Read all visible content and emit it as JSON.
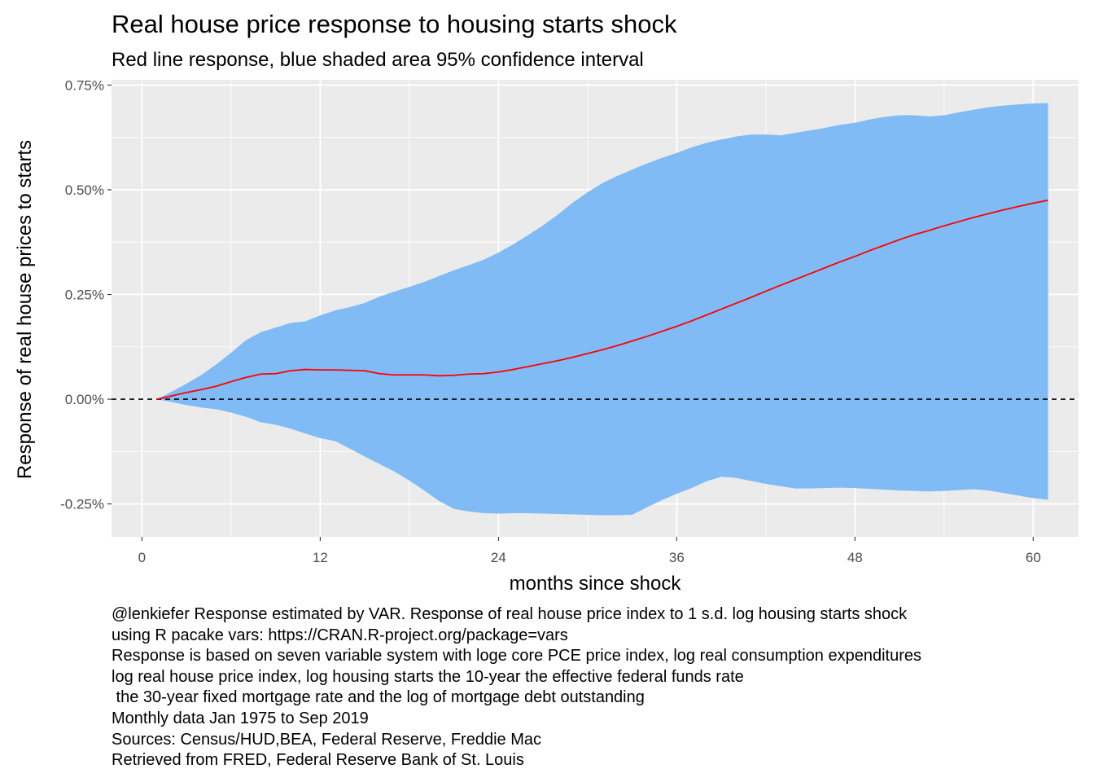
{
  "chart_data": {
    "type": "area",
    "title": "Real house price response to housing starts shock",
    "subtitle": "Red line response, blue shaded area 95% confidence interval",
    "xlabel": "months since shock",
    "ylabel": "Response of real house prices to starts",
    "x_ticks": [
      0,
      12,
      24,
      36,
      48,
      60
    ],
    "x_tick_labels": [
      "0",
      "12",
      "24",
      "36",
      "48",
      "60"
    ],
    "y_ticks": [
      -0.25,
      0,
      0.25,
      0.5,
      0.75
    ],
    "y_tick_labels": [
      "-0.25%",
      "0.00%",
      "0.25%",
      "0.50%",
      "0.75%"
    ],
    "xlim": [
      -2.05,
      63.05
    ],
    "ylim": [
      -0.3285,
      0.7625
    ],
    "grid": true,
    "reference_line": {
      "y": 0,
      "style": "dashed",
      "color": "#000000"
    },
    "x": [
      1,
      2,
      3,
      4,
      5,
      6,
      7,
      8,
      9,
      10,
      11,
      12,
      13,
      14,
      15,
      16,
      17,
      18,
      19,
      20,
      21,
      22,
      23,
      24,
      25,
      26,
      27,
      28,
      29,
      30,
      31,
      32,
      33,
      34,
      35,
      36,
      37,
      38,
      39,
      40,
      41,
      42,
      43,
      44,
      45,
      46,
      47,
      48,
      49,
      50,
      51,
      52,
      53,
      54,
      55,
      56,
      57,
      58,
      59,
      60,
      61
    ],
    "series": [
      {
        "role": "response",
        "color": "#ff0000",
        "values": [
          0,
          0.008,
          0.016,
          0.023,
          0.031,
          0.042,
          0.052,
          0.06,
          0.061,
          0.068,
          0.071,
          0.07,
          0.07,
          0.069,
          0.068,
          0.061,
          0.058,
          0.058,
          0.058,
          0.056,
          0.057,
          0.06,
          0.061,
          0.065,
          0.071,
          0.078,
          0.085,
          0.092,
          0.1,
          0.109,
          0.118,
          0.128,
          0.139,
          0.15,
          0.162,
          0.174,
          0.187,
          0.201,
          0.215,
          0.229,
          0.243,
          0.258,
          0.272,
          0.286,
          0.3,
          0.314,
          0.328,
          0.341,
          0.355,
          0.368,
          0.381,
          0.393,
          0.403,
          0.414,
          0.424,
          0.434,
          0.443,
          0.452,
          0.46,
          0.468,
          0.475
        ]
      },
      {
        "role": "upper",
        "color": "#80bbf5",
        "values": [
          0,
          0.018,
          0.037,
          0.058,
          0.083,
          0.111,
          0.141,
          0.16,
          0.171,
          0.182,
          0.186,
          0.2,
          0.212,
          0.22,
          0.23,
          0.245,
          0.257,
          0.268,
          0.28,
          0.294,
          0.308,
          0.32,
          0.333,
          0.35,
          0.37,
          0.392,
          0.415,
          0.441,
          0.469,
          0.494,
          0.516,
          0.533,
          0.548,
          0.563,
          0.576,
          0.588,
          0.601,
          0.612,
          0.62,
          0.627,
          0.632,
          0.632,
          0.63,
          0.636,
          0.642,
          0.648,
          0.655,
          0.66,
          0.668,
          0.674,
          0.678,
          0.678,
          0.675,
          0.678,
          0.685,
          0.691,
          0.697,
          0.701,
          0.704,
          0.706,
          0.707
        ]
      },
      {
        "role": "lower",
        "color": "#80bbf5",
        "values": [
          0,
          -0.007,
          -0.014,
          -0.02,
          -0.024,
          -0.032,
          -0.042,
          -0.055,
          -0.061,
          -0.07,
          -0.082,
          -0.093,
          -0.1,
          -0.118,
          -0.137,
          -0.155,
          -0.173,
          -0.194,
          -0.218,
          -0.243,
          -0.262,
          -0.268,
          -0.272,
          -0.273,
          -0.272,
          -0.272,
          -0.273,
          -0.274,
          -0.275,
          -0.276,
          -0.277,
          -0.277,
          -0.276,
          -0.258,
          -0.241,
          -0.226,
          -0.212,
          -0.196,
          -0.185,
          -0.188,
          -0.195,
          -0.202,
          -0.208,
          -0.213,
          -0.213,
          -0.212,
          -0.211,
          -0.212,
          -0.214,
          -0.216,
          -0.218,
          -0.219,
          -0.22,
          -0.219,
          -0.217,
          -0.215,
          -0.218,
          -0.224,
          -0.23,
          -0.236,
          -0.24
        ]
      }
    ]
  },
  "caption": [
    "@lenkiefer Response estimated by VAR. Response of real house price index to 1 s.d. log housing starts shock",
    "using R pacake vars: https://CRAN.R-project.org/package=vars",
    "Response is based on seven variable system with loge core PCE price index, log real consumption expenditures",
    "log real house price index, log housing starts the 10-year the effective federal funds rate",
    " the 30-year fixed mortgage rate and the log of mortgage debt outstanding",
    "Monthly data Jan 1975 to Sep 2019",
    "Sources: Census/HUD,BEA, Federal Reserve, Freddie Mac",
    "Retrieved from FRED, Federal Reserve Bank of St. Louis"
  ],
  "colors": {
    "panel_background": "#ebebeb",
    "grid_major": "#ffffff",
    "band_fill": "#80bbf5",
    "response_line": "#ff0000"
  }
}
